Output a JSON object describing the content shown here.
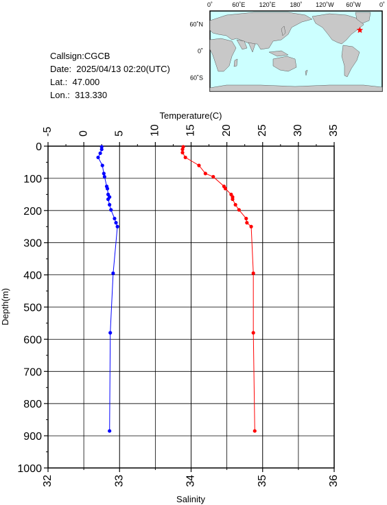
{
  "station": {
    "callsign": "Callsign:CGCB",
    "date": "Date:  2025/04/13 02:20(UTC)",
    "lat": "Lat.:  47.000",
    "lon": "Lon.:  313.330"
  },
  "map": {
    "lon_ticks": [
      "0˚",
      "60˚E",
      "120˚E",
      "180˚",
      "120˚W",
      "60˚W",
      "0˚"
    ],
    "lat_ticks": [
      "60˚N",
      "0˚",
      "60˚S"
    ],
    "station_lon": 313.33,
    "station_lat": 47.0,
    "colors": {
      "ocean": "#ccffff",
      "land": "#c8c8c8",
      "marker": "#ff0000"
    }
  },
  "chart_data": {
    "type": "line",
    "ylabel": "Depth(m)",
    "ylim": [
      1000,
      0
    ],
    "y_ticks": [
      0,
      100,
      200,
      300,
      400,
      500,
      600,
      700,
      800,
      900,
      1000
    ],
    "grid": true,
    "top_axis": {
      "label": "Temperature(C)",
      "range": [
        -5,
        35
      ],
      "ticks": [
        -5,
        0,
        5,
        10,
        15,
        20,
        25,
        30,
        35
      ],
      "tick_labels": [
        "-5",
        "0",
        "5",
        "10",
        "15",
        "20",
        "25",
        "30",
        "35"
      ]
    },
    "bottom_axis": {
      "label": "Salinity",
      "range": [
        32,
        36
      ],
      "ticks": [
        32,
        33,
        34,
        35,
        36
      ],
      "tick_labels": [
        "32",
        "33",
        "34",
        "35",
        "36"
      ]
    },
    "series": [
      {
        "axis": "top",
        "color": "#ff0000",
        "points": [
          {
            "x": 13.9,
            "y": 2
          },
          {
            "x": 13.8,
            "y": 10
          },
          {
            "x": 13.8,
            "y": 20
          },
          {
            "x": 14.2,
            "y": 35
          },
          {
            "x": 16.1,
            "y": 60
          },
          {
            "x": 17.0,
            "y": 85
          },
          {
            "x": 18.1,
            "y": 95
          },
          {
            "x": 19.6,
            "y": 125
          },
          {
            "x": 19.8,
            "y": 132
          },
          {
            "x": 20.6,
            "y": 150
          },
          {
            "x": 20.8,
            "y": 158
          },
          {
            "x": 20.8,
            "y": 165
          },
          {
            "x": 21.2,
            "y": 182
          },
          {
            "x": 21.7,
            "y": 198
          },
          {
            "x": 22.7,
            "y": 225
          },
          {
            "x": 22.8,
            "y": 238
          },
          {
            "x": 23.4,
            "y": 250
          },
          {
            "x": 23.7,
            "y": 395
          },
          {
            "x": 23.7,
            "y": 580
          },
          {
            "x": 23.9,
            "y": 885
          }
        ]
      },
      {
        "axis": "bottom",
        "color": "#0000ff",
        "points": [
          {
            "x": 32.75,
            "y": 2
          },
          {
            "x": 32.75,
            "y": 10
          },
          {
            "x": 32.73,
            "y": 22
          },
          {
            "x": 32.7,
            "y": 35
          },
          {
            "x": 32.76,
            "y": 60
          },
          {
            "x": 32.78,
            "y": 85
          },
          {
            "x": 32.79,
            "y": 95
          },
          {
            "x": 32.82,
            "y": 125
          },
          {
            "x": 32.83,
            "y": 132
          },
          {
            "x": 32.84,
            "y": 150
          },
          {
            "x": 32.86,
            "y": 158
          },
          {
            "x": 32.84,
            "y": 165
          },
          {
            "x": 32.86,
            "y": 182
          },
          {
            "x": 32.88,
            "y": 198
          },
          {
            "x": 32.93,
            "y": 225
          },
          {
            "x": 32.95,
            "y": 238
          },
          {
            "x": 32.97,
            "y": 250
          },
          {
            "x": 32.91,
            "y": 395
          },
          {
            "x": 32.87,
            "y": 580
          },
          {
            "x": 32.86,
            "y": 885
          }
        ]
      }
    ]
  }
}
